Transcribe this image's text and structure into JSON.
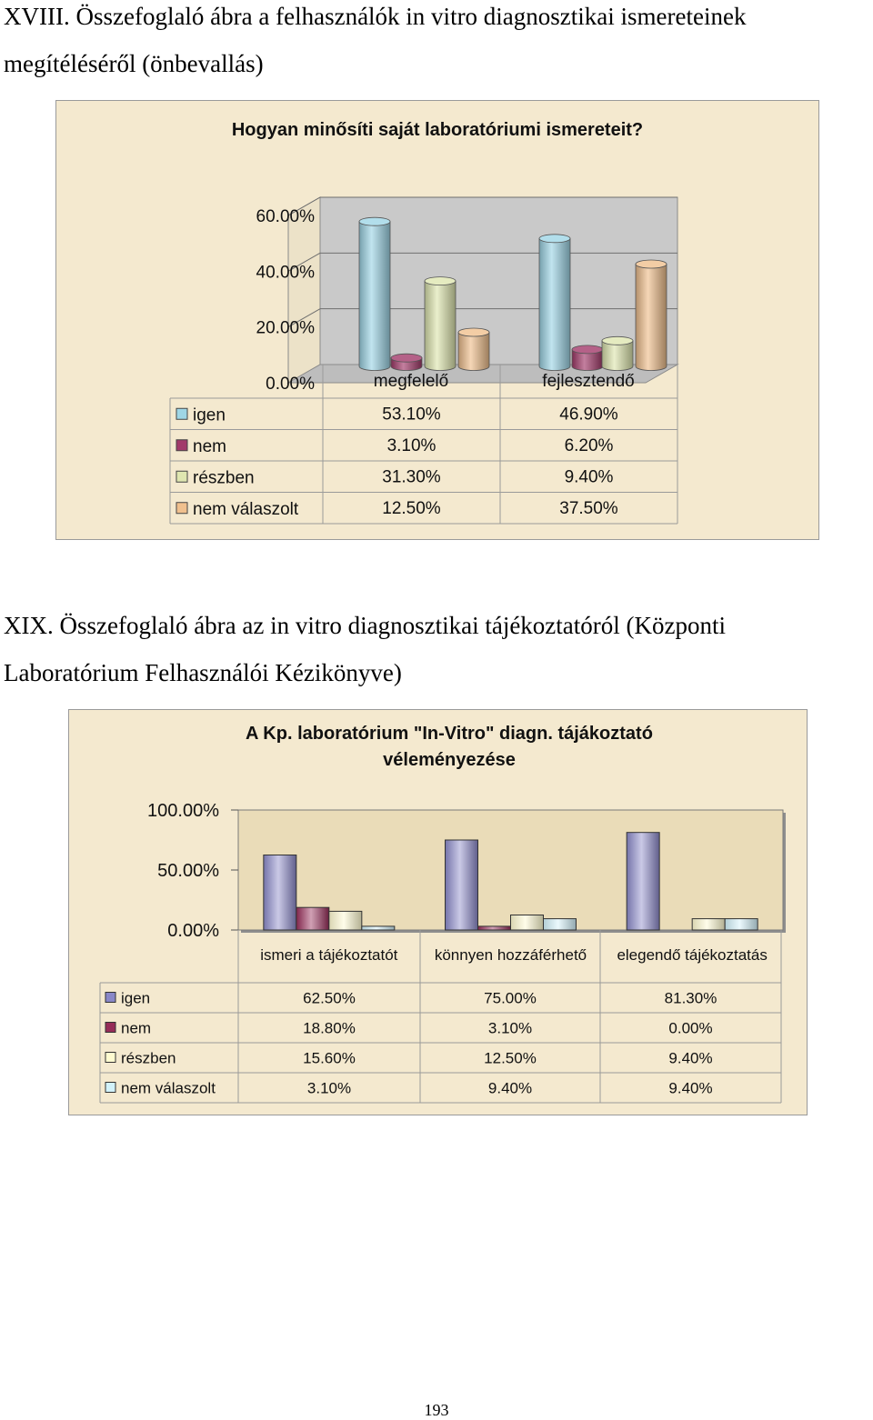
{
  "headings": {
    "fig18_line1": "XVIII. Összefoglaló ábra a felhasználók in vitro diagnosztikai ismereteinek",
    "fig18_line2": "megítéléséről (önbevallás)",
    "fig19_line1": "XIX. Összefoglaló ábra az in vitro diagnosztikai tájékoztatóról (Központi",
    "fig19_line2": "Laboratórium Felhasználói Kézikönyve)"
  },
  "page_number": "193",
  "chart_data": [
    {
      "type": "bar",
      "title": "Hogyan minősíti saját laboratóriumi ismereteit?",
      "categories": [
        "megfelelő",
        "fejlesztendő"
      ],
      "ylim": [
        0,
        60
      ],
      "yticks": [
        "0.00%",
        "20.00%",
        "40.00%",
        "60.00%"
      ],
      "grid": true,
      "three_d": true,
      "legend_placement": "data-table-left",
      "series": [
        {
          "name": "igen",
          "color": "#9fd6e6",
          "values": [
            53.1,
            46.9
          ],
          "labels": [
            "53.10%",
            "46.90%"
          ]
        },
        {
          "name": "nem",
          "color": "#a23a6a",
          "values": [
            3.1,
            6.2
          ],
          "labels": [
            "3.10%",
            "6.20%"
          ]
        },
        {
          "name": "részben",
          "color": "#dfe6b0",
          "values": [
            31.3,
            9.4
          ],
          "labels": [
            "31.30%",
            "9.40%"
          ]
        },
        {
          "name": "nem válaszolt",
          "color": "#f0c08e",
          "values": [
            12.5,
            37.5
          ],
          "labels": [
            "12.50%",
            "37.50%"
          ]
        }
      ]
    },
    {
      "type": "bar",
      "title": "A Kp. laboratórium \"In-Vitro\" diagn. tájákoztató véleményezése",
      "title_lines": [
        "A Kp. laboratórium \"In-Vitro\" diagn. tájákoztató",
        "véleményezése"
      ],
      "categories": [
        "ismeri a tájékoztatót",
        "könnyen hozzáférhető",
        "elegendő tájékoztatás"
      ],
      "ylim": [
        0,
        100
      ],
      "yticks": [
        "0.00%",
        "50.00%",
        "100.00%"
      ],
      "grid": true,
      "three_d": false,
      "legend_placement": "data-table-left",
      "series": [
        {
          "name": "igen",
          "color": "#8a88c8",
          "values": [
            62.5,
            75.0,
            81.3
          ],
          "labels": [
            "62.50%",
            "75.00%",
            "81.30%"
          ]
        },
        {
          "name": "nem",
          "color": "#962c58",
          "values": [
            18.8,
            3.1,
            0.0
          ],
          "labels": [
            "18.80%",
            "3.10%",
            "0.00%"
          ]
        },
        {
          "name": "részben",
          "color": "#fffbd0",
          "values": [
            15.6,
            12.5,
            9.4
          ],
          "labels": [
            "15.60%",
            "12.50%",
            "9.40%"
          ]
        },
        {
          "name": "nem válaszolt",
          "color": "#d2f2fa",
          "values": [
            3.1,
            9.4,
            9.4
          ],
          "labels": [
            "3.10%",
            "9.40%",
            "9.40%"
          ]
        }
      ]
    }
  ]
}
